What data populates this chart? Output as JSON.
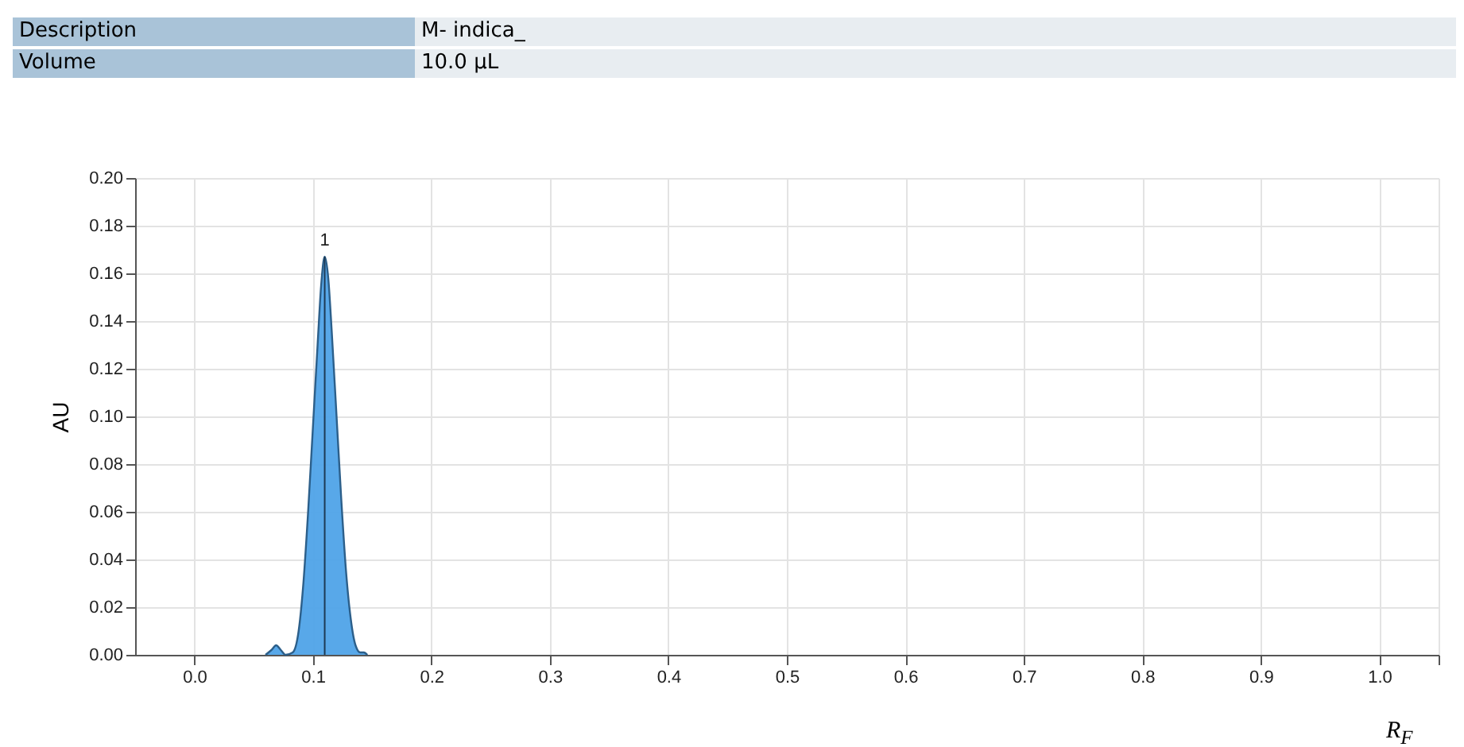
{
  "chart_data": {
    "type": "area",
    "xlabel": "R$_{F}$",
    "ylabel": "AU",
    "annotations": [
      "Description",
      "M- indica_",
      "Volume",
      "10.0 µL",
      {
        "text": "1",
        "x": 0.11,
        "y": 0.167
      }
    ],
    "x": [
      0.06,
      0.065,
      0.069,
      0.073,
      0.077,
      0.083,
      0.088,
      0.092,
      0.096,
      0.1,
      0.104,
      0.107,
      0.11,
      0.113,
      0.116,
      0.12,
      0.124,
      0.128,
      0.132,
      0.136,
      0.14,
      0.143,
      0.146
    ],
    "series": [
      {
        "color": "#4fa3e8",
        "values": [
          0,
          0.002,
          0.004,
          0.002,
          0,
          0.001,
          0.01,
          0.03,
          0.06,
          0.095,
          0.13,
          0.155,
          0.167,
          0.158,
          0.135,
          0.1,
          0.065,
          0.035,
          0.015,
          0.004,
          0.001,
          0.001,
          0
        ]
      },
      {
        "type": "line",
        "color": "#1d3a55",
        "x": [
          0.11,
          0.11
        ],
        "values": [
          0,
          0.167
        ]
      }
    ],
    "xlim": [
      -0.05,
      1.05
    ],
    "xticks": [
      {
        "value": 0,
        "label": "0.0"
      },
      {
        "value": 0.1,
        "label": "0.1"
      },
      {
        "value": 0.2,
        "label": "0.2"
      },
      {
        "value": 0.3,
        "label": "0.3"
      },
      {
        "value": 0.4,
        "label": "0.4"
      },
      {
        "value": 0.5,
        "label": "0.5"
      },
      {
        "value": 0.6,
        "label": "0.6"
      },
      {
        "value": 0.7,
        "label": "0.7"
      },
      {
        "value": 0.8,
        "label": "0.8"
      },
      {
        "value": 0.9,
        "label": "0.9"
      },
      {
        "value": 1,
        "label": "1.0"
      },
      {
        "value": 1.05,
        "label": null
      }
    ],
    "ylim": [
      0,
      0.2
    ],
    "yticks": [
      {
        "value": 0,
        "label": "0.00"
      },
      {
        "value": 0.02,
        "label": "0.02"
      },
      {
        "value": 0.04,
        "label": "0.04"
      },
      {
        "value": 0.06,
        "label": "0.06"
      },
      {
        "value": 0.08,
        "label": "0.08"
      },
      {
        "value": 0.1,
        "label": "0.10"
      },
      {
        "value": 0.12,
        "label": "0.12"
      },
      {
        "value": 0.14,
        "label": "0.14"
      },
      {
        "value": 0.16,
        "label": "0.16"
      },
      {
        "value": 0.18,
        "label": "0.18"
      },
      {
        "value": 0.2,
        "label": "0.20"
      }
    ],
    "grid": true
  }
}
